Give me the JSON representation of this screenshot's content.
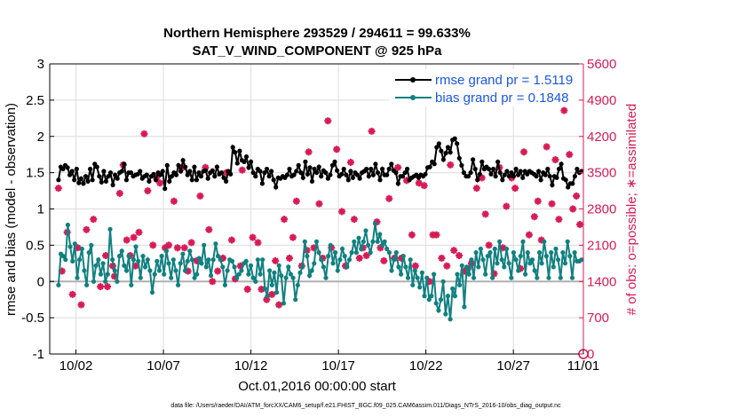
{
  "chart_data": {
    "type": "line",
    "title": "Northern Hemisphere 293529 / 294611 = 99.633%",
    "subtitle": "SAT_V_WIND_COMPONENT @ 925 hPa",
    "xlabel": "Oct.01,2016 00:00:00 start",
    "ylabel_left": "rmse and bias (model - observation)",
    "ylabel_right": "# of obs: o=possible; ∗=assimilated",
    "footnote": "data file: /Users/raeder/DAI/ATM_forcXX/CAM6_setup/f.e21.FHIST_BGC.f09_025.CAM6assim.011/Diags_NTrS_2016-10/obs_diag_output.nc",
    "x_range_days": [
      0.5,
      31.0
    ],
    "x_tick_days": [
      2,
      7,
      12,
      17,
      22,
      27,
      32
    ],
    "x_tick_labels": [
      "10/02",
      "10/07",
      "10/12",
      "10/17",
      "10/22",
      "10/27",
      "11/01"
    ],
    "ylim_left": [
      -1,
      3
    ],
    "yticks_left": [
      "-1",
      "-0.5",
      "0",
      "0.5",
      "1",
      "1.5",
      "2",
      "2.5",
      "3"
    ],
    "ylim_right": [
      0,
      5600
    ],
    "yticks_right": [
      "0",
      "700",
      "1400",
      "2100",
      "2800",
      "3500",
      "4200",
      "4900",
      "5600"
    ],
    "grid": true,
    "legend_position": "top-right",
    "colors": {
      "rmse": "#000000",
      "bias": "#118080",
      "obs": "#d81b55",
      "legend_text": "#1a56e0",
      "zero_line": "#b0b0b0"
    },
    "series": [
      {
        "name": "rmse grand pr = 1.5119",
        "values": [
          1.4,
          1.58,
          1.55,
          1.6,
          1.57,
          1.47,
          1.52,
          1.4,
          1.55,
          1.36,
          1.42,
          1.35,
          1.45,
          1.38,
          1.55,
          1.4,
          1.62,
          1.58,
          1.45,
          1.37,
          1.52,
          1.38,
          1.45,
          1.5,
          1.33,
          1.47,
          1.42,
          1.5,
          1.52,
          1.62,
          1.4,
          1.5,
          1.5,
          1.45,
          1.47,
          1.48,
          1.52,
          1.42,
          1.45,
          1.47,
          1.38,
          1.45,
          1.48,
          1.4,
          1.5,
          1.47,
          1.52,
          1.28,
          1.6,
          1.38,
          1.45,
          1.5,
          1.47,
          1.6,
          1.52,
          1.67,
          1.58,
          1.47,
          1.52,
          1.4,
          1.58,
          1.4,
          1.5,
          1.45,
          1.52,
          1.53,
          1.42,
          1.5,
          1.53,
          1.45,
          1.58,
          1.48,
          1.5,
          1.43,
          1.38,
          1.52,
          1.48,
          1.85,
          1.78,
          1.63,
          1.8,
          1.67,
          1.65,
          1.72,
          1.57,
          1.65,
          1.5,
          1.45,
          1.55,
          1.52,
          1.35,
          1.5,
          1.55,
          1.45,
          1.52,
          1.4,
          1.3,
          1.43,
          1.42,
          1.45,
          1.43,
          1.47,
          1.55,
          1.45,
          1.47,
          1.52,
          1.6,
          1.5,
          1.43,
          1.65,
          1.48,
          1.57,
          1.38,
          1.55,
          1.5,
          1.58,
          1.45,
          1.53,
          1.5,
          1.42,
          1.47,
          1.6,
          1.65,
          1.53,
          1.45,
          1.48,
          1.55,
          1.47,
          1.4,
          1.52,
          1.43,
          1.5,
          1.47,
          1.42,
          1.5,
          1.52,
          1.55,
          1.45,
          1.55,
          1.47,
          1.62,
          1.5,
          1.4,
          1.55,
          1.47,
          1.47,
          1.55,
          1.62,
          1.53,
          1.5,
          1.35,
          1.45,
          1.45,
          1.5,
          1.55,
          1.4,
          1.43,
          1.45,
          1.47,
          1.43,
          1.47,
          1.45,
          1.48,
          1.57,
          1.58,
          1.65,
          1.62,
          1.85,
          1.9,
          1.8,
          1.68,
          1.77,
          1.85,
          1.78,
          1.95,
          1.97,
          1.9,
          1.7,
          1.6,
          1.5,
          1.45,
          1.45,
          1.5,
          1.68,
          1.55,
          1.4,
          1.48,
          1.65,
          1.55,
          1.58,
          1.55,
          1.48,
          1.55,
          1.45,
          1.65,
          1.5,
          1.4,
          1.47,
          1.52,
          1.45,
          1.5,
          1.45,
          1.55,
          1.47,
          1.52,
          1.43,
          1.52,
          1.48,
          1.52,
          1.5,
          1.48,
          1.45,
          1.52,
          1.4,
          1.5,
          1.47,
          1.55,
          1.45,
          1.33,
          1.45,
          1.43,
          1.55,
          1.62,
          1.42,
          1.4,
          1.3,
          1.35,
          1.35,
          1.45,
          1.55,
          1.5,
          1.52
        ]
      },
      {
        "name": "bias grand pr = 0.1848",
        "values": [
          -0.05,
          0.38,
          0.35,
          0.3,
          0.78,
          0.48,
          0.28,
          0.52,
          0.05,
          0.3,
          0.45,
          0.15,
          -0.05,
          0.4,
          0.5,
          0.0,
          0.22,
          0.3,
          0.1,
          0.25,
          0.0,
          0.1,
          0.72,
          0.3,
          0.15,
          0.0,
          0.35,
          0.42,
          0.22,
          0.15,
          0.35,
          -0.05,
          0.3,
          0.48,
          0.28,
          0.05,
          0.35,
          0.2,
          0.3,
          0.15,
          -0.15,
          0.1,
          0.28,
          0.15,
          0.35,
          0.1,
          0.42,
          0.25,
          0.05,
          0.3,
          0.15,
          -0.05,
          0.25,
          0.38,
          0.15,
          0.28,
          0.42,
          0.3,
          0.05,
          0.1,
          0.32,
          0.25,
          0.5,
          0.2,
          0.3,
          0.08,
          0.3,
          0.52,
          0.35,
          0.3,
          0.2,
          -0.05,
          0.15,
          0.3,
          0.28,
          0.2,
          0.05,
          0.1,
          0.15,
          0.25,
          0.28,
          0.1,
          0.22,
          0.05,
          0.0,
          0.3,
          0.1,
          0.3,
          -0.1,
          -0.2,
          0.15,
          -0.05,
          0.12,
          -0.15,
          0.22,
          0.08,
          -0.3,
          0.05,
          0.2,
          0.1,
          0.05,
          -0.25,
          -0.05,
          0.12,
          0.2,
          0.55,
          0.35,
          0.08,
          0.15,
          0.25,
          0.55,
          0.4,
          0.3,
          0.2,
          0.05,
          0.35,
          0.5,
          0.25,
          0.4,
          0.15,
          0.3,
          0.45,
          0.35,
          0.2,
          0.3,
          0.4,
          0.55,
          0.4,
          0.6,
          0.45,
          0.55,
          0.7,
          0.5,
          0.4,
          0.55,
          0.8,
          0.55,
          0.65,
          0.5,
          0.55,
          0.45,
          0.4,
          0.15,
          0.3,
          0.4,
          0.2,
          0.1,
          0.35,
          0.2,
          0.05,
          0.3,
          -0.05,
          0.15,
          0.05,
          -0.08,
          0.12,
          -0.2,
          0.05,
          -0.25,
          -0.2,
          0.1,
          -0.3,
          -0.4,
          -0.25,
          0.0,
          -0.45,
          -0.2,
          -0.52,
          -0.1,
          -0.2,
          0.1,
          -0.05,
          0.22,
          -0.35,
          0.2,
          0.1,
          0.3,
          0.05,
          0.4,
          0.2,
          0.45,
          0.3,
          0.1,
          0.35,
          0.4,
          0.05,
          0.45,
          0.25,
          0.55,
          0.3,
          0.2,
          0.45,
          0.25,
          0.05,
          0.4,
          0.3,
          0.15,
          0.35,
          0.55,
          0.1,
          0.4,
          0.25,
          0.3,
          0.15,
          0.05,
          0.4,
          0.25,
          0.55,
          0.35,
          0.05,
          0.4,
          0.2,
          0.45,
          0.3,
          0.05,
          0.4,
          0.25,
          0.55,
          0.35,
          0.05,
          0.4,
          0.28,
          0.28,
          0.3
        ]
      },
      {
        "name": "assimilated",
        "marker": "*",
        "x": [
          1.0,
          1.2,
          1.5,
          1.8,
          2.1,
          2.3,
          2.6,
          3.0,
          3.4,
          3.7,
          3.8,
          4.1,
          4.2,
          4.5,
          4.7,
          4.9,
          5.1,
          5.3,
          5.4,
          5.6,
          5.9,
          6.1,
          6.4,
          6.6,
          6.8,
          7.1,
          7.3,
          7.6,
          7.8,
          8.1,
          8.2,
          8.4,
          8.6,
          8.9,
          9.1,
          9.4,
          9.6,
          9.8,
          10.1,
          10.4,
          10.6,
          10.9,
          11.1,
          11.4,
          11.5,
          11.8,
          12.1,
          12.4,
          12.6,
          12.9,
          13.2,
          13.4,
          13.6,
          13.9,
          14.2,
          14.4,
          14.6,
          14.9,
          15.2,
          15.3,
          15.6,
          15.9,
          16.1,
          16.4,
          16.6,
          16.9,
          17.2,
          17.4,
          17.7,
          17.9,
          18.2,
          18.4,
          18.6,
          18.9,
          19.2,
          19.4,
          19.6,
          19.9,
          20.2,
          20.4,
          20.6,
          20.9,
          21.2,
          21.4,
          21.6,
          21.9,
          22.2,
          22.4,
          22.6,
          22.9,
          23.2,
          23.4,
          23.6,
          23.9,
          24.2,
          24.4,
          24.6,
          24.9,
          25.2,
          25.4,
          25.6,
          25.9,
          26.2,
          26.4,
          26.6,
          26.9,
          27.1,
          27.4,
          27.6,
          27.9,
          28.2,
          28.4,
          28.6,
          28.9,
          29.2,
          29.4,
          29.6,
          29.9,
          30.2,
          30.4,
          30.6,
          30.8
        ],
        "values": [
          3200,
          1600,
          2350,
          1150,
          2050,
          950,
          2400,
          2600,
          1300,
          1900,
          1300,
          1700,
          1500,
          3100,
          3650,
          2200,
          1900,
          2250,
          1700,
          2350,
          4250,
          3150,
          2100,
          3400,
          3300,
          2050,
          2100,
          2950,
          2050,
          3600,
          2050,
          1600,
          2150,
          1800,
          3050,
          3600,
          2400,
          1400,
          1600,
          1850,
          3500,
          2200,
          1450,
          1700,
          3550,
          1250,
          2250,
          2150,
          1250,
          1050,
          1150,
          1800,
          950,
          2600,
          1850,
          2250,
          2950,
          1700,
          2000,
          3900,
          2050,
          2900,
          1850,
          4500,
          2050,
          3950,
          2750,
          1700,
          3700,
          2600,
          1850,
          2050,
          1900,
          4300,
          2550,
          2050,
          1800,
          3000,
          1850,
          3600,
          1850,
          3350,
          2300,
          1700,
          3300,
          3250,
          1400,
          2300,
          2300,
          1850,
          1700,
          3650,
          2000,
          1900,
          1600,
          1650,
          1750,
          3200,
          3400,
          2700,
          2100,
          1550,
          3600,
          2050,
          2850,
          3400,
          3200,
          1650,
          3900,
          2300,
          2650,
          2950,
          2200,
          4000,
          2900,
          3750,
          2600,
          4700,
          3850,
          2800,
          3050,
          2500
        ]
      },
      {
        "name": "possible",
        "marker": "o",
        "x": [],
        "values": []
      }
    ]
  }
}
